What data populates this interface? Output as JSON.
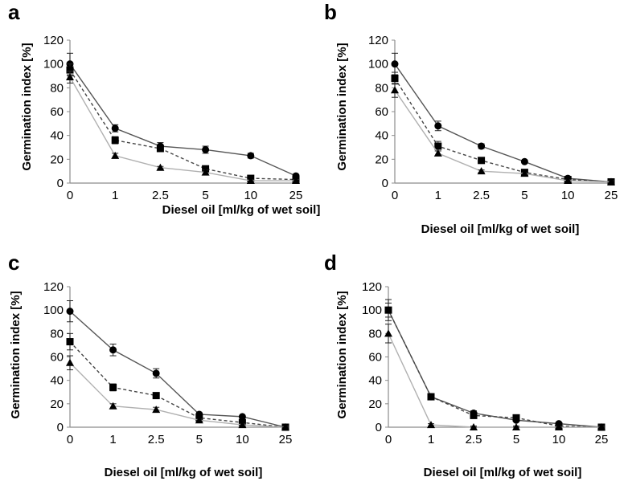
{
  "chart_data": [
    {
      "panel": "a",
      "type": "line",
      "xlabel": "Diesel oil [ml/kg of wet soil]",
      "ylabel": "Germination index [%]",
      "categories": [
        "0",
        "1",
        "2.5",
        "5",
        "10",
        "25"
      ],
      "yticks": [
        "0",
        "20",
        "40",
        "60",
        "80",
        "100",
        "120"
      ],
      "ylim": [
        0,
        120
      ],
      "grid": false,
      "series": [
        {
          "marker": "circle",
          "line": "solid",
          "values": [
            100,
            46,
            31,
            28,
            23,
            6
          ],
          "err": [
            9,
            3,
            3,
            3,
            2,
            1
          ]
        },
        {
          "marker": "square",
          "line": "dashed",
          "values": [
            95,
            36,
            29,
            12,
            4,
            3
          ],
          "err": [
            5,
            3,
            2,
            2,
            1,
            1
          ]
        },
        {
          "marker": "triangle",
          "line": "light",
          "values": [
            89,
            23,
            13,
            9,
            2,
            2
          ],
          "err": [
            5,
            2,
            1,
            2,
            1,
            1
          ]
        }
      ]
    },
    {
      "panel": "b",
      "type": "line",
      "xlabel": "Diesel oil [ml/kg of wet soil]",
      "ylabel": "Germination index [%]",
      "categories": [
        "0",
        "1",
        "2.5",
        "5",
        "10",
        "25"
      ],
      "yticks": [
        "0",
        "20",
        "40",
        "60",
        "80",
        "100",
        "120"
      ],
      "ylim": [
        0,
        120
      ],
      "grid": false,
      "series": [
        {
          "marker": "circle",
          "line": "solid",
          "values": [
            100,
            48,
            31,
            18,
            4,
            1
          ],
          "err": [
            9,
            4,
            2,
            1,
            1,
            1
          ]
        },
        {
          "marker": "square",
          "line": "dashed",
          "values": [
            88,
            31,
            19,
            9,
            3,
            1
          ],
          "err": [
            5,
            4,
            2,
            1,
            1,
            1
          ]
        },
        {
          "marker": "triangle",
          "line": "light",
          "values": [
            78,
            25,
            10,
            8,
            2,
            1
          ],
          "err": [
            6,
            2,
            1,
            1,
            1,
            1
          ]
        }
      ]
    },
    {
      "panel": "c",
      "type": "line",
      "xlabel": "Diesel oil [ml/kg of wet soil]",
      "ylabel": "Germination index [%]",
      "categories": [
        "0",
        "1",
        "2.5",
        "5",
        "10",
        "25"
      ],
      "yticks": [
        "0",
        "20",
        "40",
        "60",
        "80",
        "100",
        "120"
      ],
      "ylim": [
        0,
        120
      ],
      "grid": false,
      "series": [
        {
          "marker": "circle",
          "line": "solid",
          "values": [
            99,
            66,
            46,
            11,
            9,
            0
          ],
          "err": [
            9,
            5,
            4,
            1,
            1,
            1
          ]
        },
        {
          "marker": "square",
          "line": "dashed",
          "values": [
            73,
            34,
            27,
            8,
            4,
            0
          ],
          "err": [
            7,
            3,
            2,
            1,
            1,
            1
          ]
        },
        {
          "marker": "triangle",
          "line": "light",
          "values": [
            55,
            18,
            15,
            6,
            2,
            0
          ],
          "err": [
            6,
            2,
            2,
            1,
            1,
            1
          ]
        }
      ]
    },
    {
      "panel": "d",
      "type": "line",
      "xlabel": "Diesel oil [ml/kg of wet soil]",
      "ylabel": "Germination index [%]",
      "categories": [
        "0",
        "1",
        "2.5",
        "5",
        "10",
        "25"
      ],
      "yticks": [
        "0",
        "20",
        "40",
        "60",
        "80",
        "100",
        "120"
      ],
      "ylim": [
        0,
        120
      ],
      "grid": false,
      "series": [
        {
          "marker": "circle",
          "line": "solid",
          "values": [
            100,
            26,
            12,
            6,
            3,
            0
          ],
          "err": [
            9,
            2,
            2,
            1,
            1,
            1
          ]
        },
        {
          "marker": "square",
          "line": "dashed",
          "values": [
            100,
            26,
            10,
            8,
            1,
            0
          ],
          "err": [
            6,
            2,
            2,
            1,
            1,
            1
          ]
        },
        {
          "marker": "triangle",
          "line": "light",
          "values": [
            80,
            2,
            0,
            0,
            0,
            0
          ],
          "err": [
            8,
            1,
            1,
            1,
            1,
            1
          ]
        }
      ]
    }
  ],
  "colors": {
    "axis": "#8c8c8c",
    "solid": "#555555",
    "dashed": "#444444",
    "light": "#b0b0b0",
    "marker": "#000000"
  }
}
